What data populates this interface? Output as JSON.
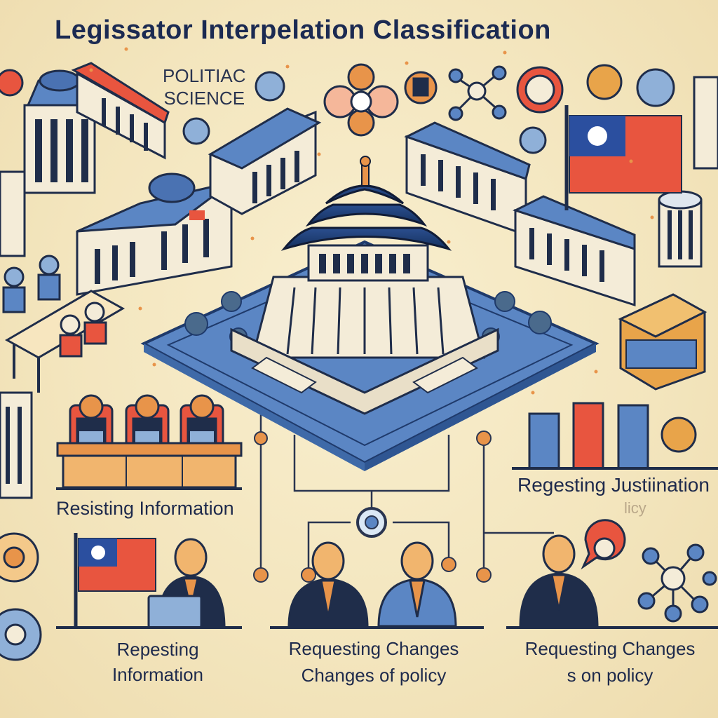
{
  "title": "Legissator Interpelation Classification",
  "side_label": {
    "line1": "POLITIAC",
    "line2": "SCIENCE"
  },
  "captions": {
    "resisting": "Resisting Information",
    "justification": "Regesting Justiination",
    "justification_sub": "licy",
    "requesting_info": {
      "line1": "Repesting",
      "line2": "Information"
    },
    "requesting_changes": {
      "line1": "Requesting Changes",
      "line2": "Changes of policy"
    },
    "requesting_changes_on": {
      "line1": "Requesting Changes",
      "line2": "s on policy"
    }
  },
  "colors": {
    "background": "#f4e8c4",
    "navy": "#1f3a6b",
    "blue": "#5b86c4",
    "red": "#e8553f",
    "orange": "#e8944a",
    "wall": "#f4ecd8"
  },
  "icons": [
    "flag-icon",
    "pagoda-icon",
    "molecule-icon",
    "network-icon",
    "person-icon",
    "laptop-icon",
    "book-icon",
    "speech-bubble-icon",
    "globe-icon"
  ]
}
